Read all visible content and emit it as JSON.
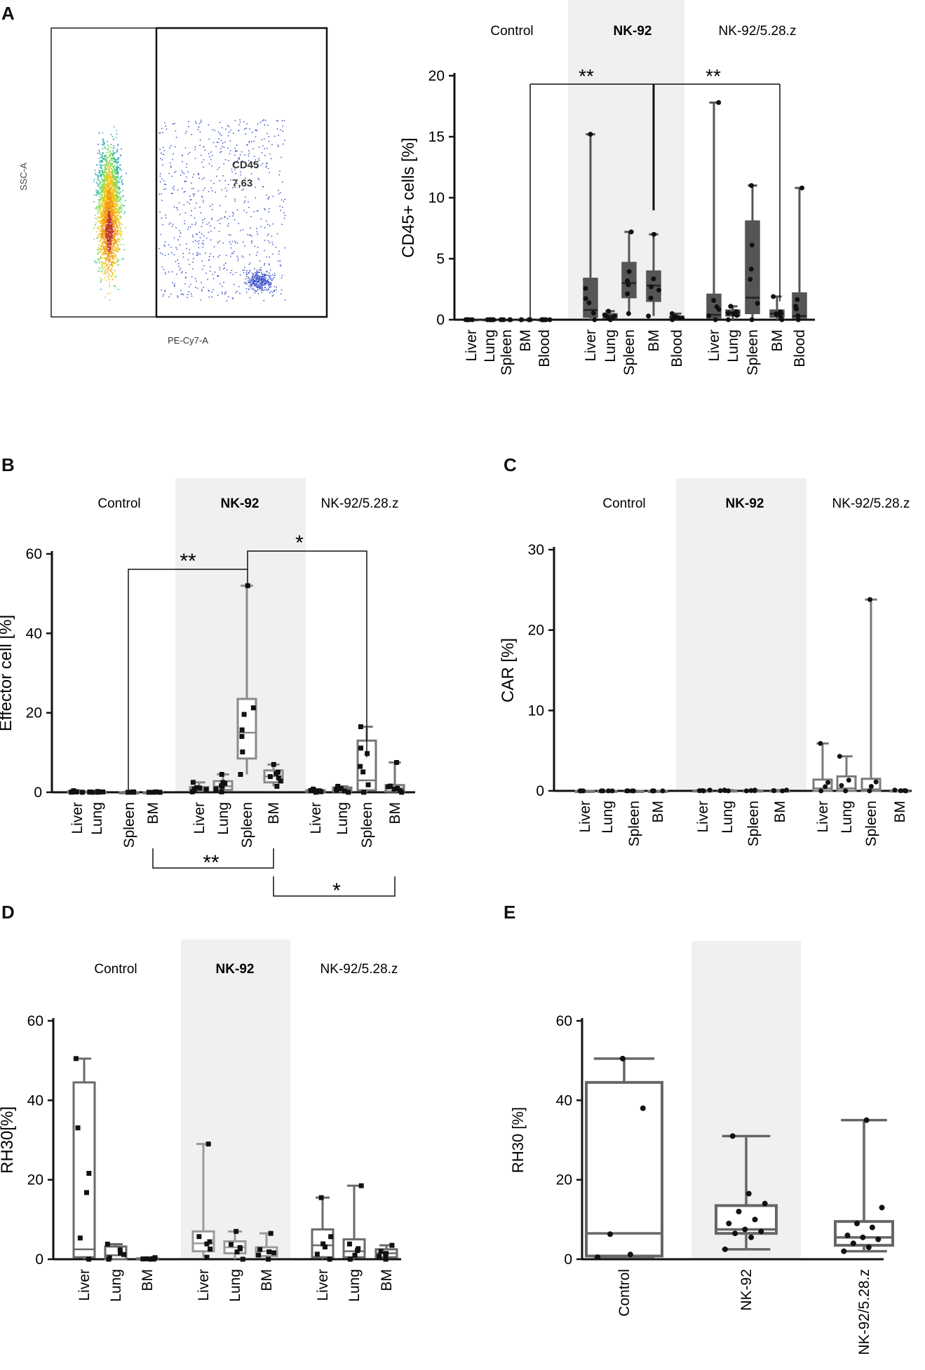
{
  "panel_labels": {
    "a": "A",
    "b": "B",
    "c": "C",
    "d": "D",
    "e": "E"
  },
  "flow": {
    "y_axis": "SSC-A",
    "x_axis": "PE-Cy7-A",
    "gate_name": "CD45",
    "gate_value": "7,63"
  },
  "colors": {
    "dark_box": "#555555",
    "grey_box": "#8a8a8a",
    "axis": "#111111",
    "shade": "#f0f0f2",
    "flow_dot": "#3a4fc8"
  },
  "chart_data": [
    {
      "id": "A",
      "type": "box",
      "ylabel": "CD45+ cells [%]",
      "ylim": [
        0,
        20
      ],
      "yticks": [
        0,
        5,
        10,
        15,
        20
      ],
      "groups": [
        "Control",
        "NK-92",
        "NK-92/5.28.z"
      ],
      "categories": [
        "Liver",
        "Lung",
        "Spleen",
        "BM",
        "Blood"
      ],
      "series": [
        {
          "name": "Control",
          "boxes": [
            {
              "min": 0,
              "q1": 0,
              "median": 0,
              "q3": 0,
              "max": 0
            },
            {
              "min": 0,
              "q1": 0,
              "median": 0,
              "q3": 0,
              "max": 0
            },
            {
              "min": 0,
              "q1": 0,
              "median": 0,
              "q3": 0,
              "max": 0
            },
            {
              "min": 0,
              "q1": 0,
              "median": 0,
              "q3": 0,
              "max": 0
            },
            {
              "min": 0,
              "q1": 0,
              "median": 0,
              "q3": 0,
              "max": 0
            }
          ]
        },
        {
          "name": "NK-92",
          "boxes": [
            {
              "min": 0,
              "q1": 0.2,
              "median": 0.8,
              "q3": 3.4,
              "max": 15.2
            },
            {
              "min": 0,
              "q1": 0.1,
              "median": 0.3,
              "q3": 0.5,
              "max": 0.7
            },
            {
              "min": 0.5,
              "q1": 1.8,
              "median": 3.0,
              "q3": 4.7,
              "max": 7.2
            },
            {
              "min": 0.3,
              "q1": 1.5,
              "median": 2.8,
              "q3": 4.0,
              "max": 7.0
            },
            {
              "min": 0,
              "q1": 0.1,
              "median": 0.2,
              "q3": 0.3,
              "max": 0.5
            }
          ]
        },
        {
          "name": "NK-92/5.28.z",
          "boxes": [
            {
              "min": 0,
              "q1": 0.1,
              "median": 0.4,
              "q3": 2.1,
              "max": 17.8
            },
            {
              "min": 0,
              "q1": 0.3,
              "median": 0.6,
              "q3": 0.8,
              "max": 1.1
            },
            {
              "min": 0,
              "q1": 0.5,
              "median": 1.8,
              "q3": 8.1,
              "max": 11.0
            },
            {
              "min": 0,
              "q1": 0.2,
              "median": 0.5,
              "q3": 0.8,
              "max": 1.9
            },
            {
              "min": 0,
              "q1": 0.1,
              "median": 0.3,
              "q3": 2.2,
              "max": 10.8
            }
          ]
        }
      ],
      "significance": [
        {
          "label": "**",
          "from": "Control BM",
          "to": "NK-92 BM"
        },
        {
          "label": "**",
          "from": "NK-92 BM",
          "to": "NK-92/5.28.z BM"
        }
      ]
    },
    {
      "id": "B",
      "type": "box",
      "ylabel": "Effector cell [%]",
      "ylim": [
        0,
        60
      ],
      "yticks": [
        0,
        20,
        40,
        60
      ],
      "groups": [
        "Control",
        "NK-92",
        "NK-92/5.28.z"
      ],
      "categories": [
        "Liver",
        "Lung",
        "Spleen",
        "BM"
      ],
      "series": [
        {
          "name": "Control",
          "boxes": [
            {
              "min": 0,
              "q1": 0,
              "median": 0,
              "q3": 0.2,
              "max": 0.4
            },
            {
              "min": 0,
              "q1": 0,
              "median": 0,
              "q3": 0.1,
              "max": 0.2
            },
            {
              "min": 0,
              "q1": 0,
              "median": 0,
              "q3": 0,
              "max": 0.1
            },
            {
              "min": 0,
              "q1": 0,
              "median": 0,
              "q3": 0,
              "max": 0.1
            }
          ]
        },
        {
          "name": "NK-92",
          "boxes": [
            {
              "min": 0.1,
              "q1": 0.4,
              "median": 0.8,
              "q3": 1.3,
              "max": 2.5
            },
            {
              "min": 0.1,
              "q1": 0.6,
              "median": 1.5,
              "q3": 2.8,
              "max": 4.5
            },
            {
              "min": 4.5,
              "q1": 8.5,
              "median": 15,
              "q3": 23.5,
              "max": 52
            },
            {
              "min": 1.5,
              "q1": 2.5,
              "median": 4,
              "q3": 5.5,
              "max": 7
            }
          ]
        },
        {
          "name": "NK-92/5.28.z",
          "boxes": [
            {
              "min": 0,
              "q1": 0.1,
              "median": 0.3,
              "q3": 0.5,
              "max": 0.8
            },
            {
              "min": 0,
              "q1": 0.2,
              "median": 0.8,
              "q3": 1.2,
              "max": 1.5
            },
            {
              "min": 0,
              "q1": 0.5,
              "median": 3,
              "q3": 13,
              "max": 16.5
            },
            {
              "min": 0,
              "q1": 0.2,
              "median": 1,
              "q3": 1.8,
              "max": 7.5
            }
          ]
        }
      ],
      "significance": [
        {
          "label": "**",
          "from": "Control Spleen",
          "to": "NK-92 Spleen"
        },
        {
          "label": "*",
          "from": "NK-92 Spleen",
          "to": "NK-92/5.28.z Spleen"
        },
        {
          "label": "**",
          "from": "Control BM",
          "to": "NK-92 BM"
        },
        {
          "label": "*",
          "from": "NK-92 BM",
          "to": "NK-92/5.28.z BM"
        }
      ]
    },
    {
      "id": "C",
      "type": "box",
      "ylabel": "CAR [%]",
      "ylim": [
        0,
        30
      ],
      "yticks": [
        0,
        10,
        20,
        30
      ],
      "groups": [
        "Control",
        "NK-92",
        "NK-92/5.28.z"
      ],
      "categories": [
        "Liver",
        "Lung",
        "Spleen",
        "BM"
      ],
      "series": [
        {
          "name": "Control",
          "boxes": [
            {
              "min": 0,
              "q1": 0,
              "median": 0,
              "q3": 0,
              "max": 0
            },
            {
              "min": 0,
              "q1": 0,
              "median": 0,
              "q3": 0,
              "max": 0
            },
            {
              "min": 0,
              "q1": 0,
              "median": 0,
              "q3": 0,
              "max": 0
            },
            {
              "min": 0,
              "q1": 0,
              "median": 0,
              "q3": 0,
              "max": 0
            }
          ]
        },
        {
          "name": "NK-92",
          "boxes": [
            {
              "min": 0,
              "q1": 0,
              "median": 0,
              "q3": 0.05,
              "max": 0.1
            },
            {
              "min": 0,
              "q1": 0,
              "median": 0,
              "q3": 0.05,
              "max": 0.1
            },
            {
              "min": 0,
              "q1": 0,
              "median": 0,
              "q3": 0.05,
              "max": 0.1
            },
            {
              "min": 0,
              "q1": 0,
              "median": 0,
              "q3": 0.05,
              "max": 0.1
            }
          ]
        },
        {
          "name": "NK-92/5.28.z",
          "boxes": [
            {
              "min": 0,
              "q1": 0,
              "median": 0.3,
              "q3": 1.4,
              "max": 5.9
            },
            {
              "min": 0,
              "q1": 0,
              "median": 0.3,
              "q3": 1.8,
              "max": 4.3
            },
            {
              "min": 0,
              "q1": 0,
              "median": 0.2,
              "q3": 1.5,
              "max": 23.8
            },
            {
              "min": 0,
              "q1": 0,
              "median": 0,
              "q3": 0.05,
              "max": 0.1
            }
          ]
        }
      ]
    },
    {
      "id": "D",
      "type": "box",
      "ylabel": "RH30[%]",
      "ylim": [
        0,
        60
      ],
      "yticks": [
        0,
        20,
        40,
        60
      ],
      "groups": [
        "Control",
        "NK-92",
        "NK-92/5.28.z"
      ],
      "categories": [
        "Liver",
        "Lung",
        "BM"
      ],
      "series": [
        {
          "name": "Control",
          "boxes": [
            {
              "min": 0,
              "q1": 0.5,
              "median": 2.5,
              "q3": 44.5,
              "max": 50.5
            },
            {
              "min": 0,
              "q1": 0,
              "median": 1,
              "q3": 3.2,
              "max": 3.8
            },
            {
              "min": 0,
              "q1": 0,
              "median": 0,
              "q3": 0.2,
              "max": 0.4
            }
          ]
        },
        {
          "name": "NK-92",
          "boxes": [
            {
              "min": 0.5,
              "q1": 2,
              "median": 4,
              "q3": 7,
              "max": 29
            },
            {
              "min": 0,
              "q1": 1.5,
              "median": 3,
              "q3": 4.5,
              "max": 7
            },
            {
              "min": 0,
              "q1": 0.8,
              "median": 2,
              "q3": 3,
              "max": 6.5
            }
          ]
        },
        {
          "name": "NK-92/5.28.z",
          "boxes": [
            {
              "min": 0,
              "q1": 0.5,
              "median": 3.5,
              "q3": 7.5,
              "max": 15.5
            },
            {
              "min": 0,
              "q1": 0.5,
              "median": 2,
              "q3": 5,
              "max": 18.5
            },
            {
              "min": 0,
              "q1": 0.5,
              "median": 1.5,
              "q3": 2.5,
              "max": 3.5
            }
          ]
        }
      ]
    },
    {
      "id": "E",
      "type": "box",
      "ylabel": "RH30 [%]",
      "ylim": [
        0,
        60
      ],
      "yticks": [
        0,
        20,
        40,
        60
      ],
      "categories": [
        "Control",
        "NK-92",
        "NK-92/5.28.z"
      ],
      "boxes": [
        {
          "min": 0.5,
          "q1": 0.8,
          "median": 6.5,
          "q3": 44.5,
          "max": 50.5
        },
        {
          "min": 2.5,
          "q1": 6.5,
          "median": 7.5,
          "q3": 13.5,
          "max": 31
        },
        {
          "min": 2,
          "q1": 3.5,
          "median": 5.5,
          "q3": 9.5,
          "max": 35
        }
      ],
      "points": [
        [
          0.5,
          1.2,
          6.3,
          38,
          50.5
        ],
        [
          2.5,
          5.5,
          6.5,
          7,
          7.5,
          9,
          10,
          12,
          14,
          16.5,
          31
        ],
        [
          2,
          3,
          4,
          5,
          5.5,
          6,
          8,
          9,
          13,
          35
        ]
      ]
    }
  ]
}
